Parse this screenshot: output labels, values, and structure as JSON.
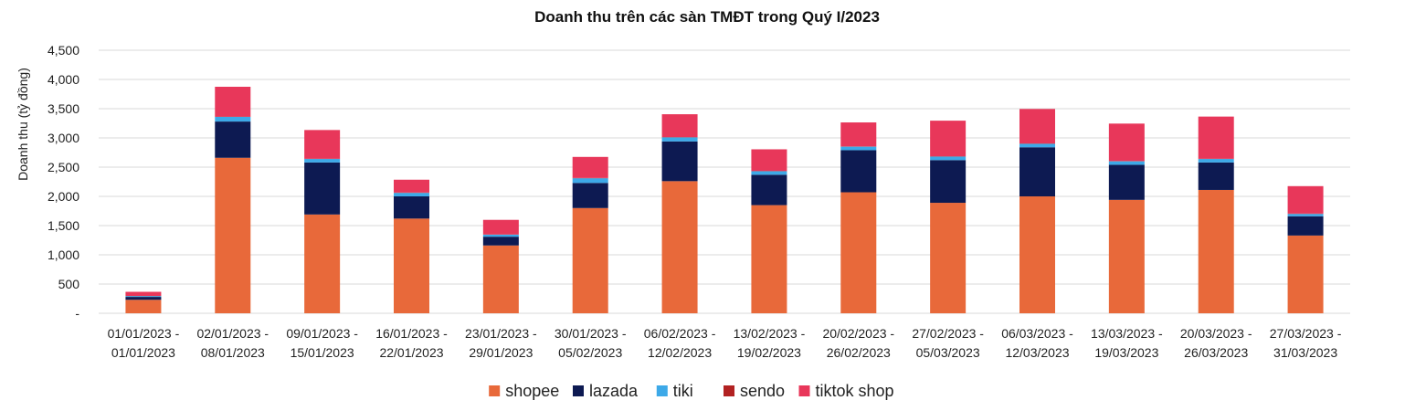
{
  "chart_data": {
    "type": "bar",
    "stacked": true,
    "title": "Doanh thu trên các sàn TMĐT trong Quý I/2023",
    "xlabel": "",
    "ylabel": "Doanh thu (tỷ đồng)",
    "ylim": [
      0,
      4500
    ],
    "yticks": [
      0,
      500,
      1000,
      1500,
      2000,
      2500,
      3000,
      3500,
      4000,
      4500
    ],
    "ytick_labels": [
      "-",
      "500",
      "1,000",
      "1,500",
      "2,000",
      "2,500",
      "3,000",
      "3,500",
      "4,000",
      "4,500"
    ],
    "grid": true,
    "legend_position": "bottom",
    "categories": [
      "01/01/2023 - 01/01/2023",
      "02/01/2023 - 08/01/2023",
      "09/01/2023 - 15/01/2023",
      "16/01/2023 - 22/01/2023",
      "23/01/2023 - 29/01/2023",
      "30/01/2023 - 05/02/2023",
      "06/02/2023 - 12/02/2023",
      "13/02/2023 - 19/02/2023",
      "20/02/2023 - 26/02/2023",
      "27/02/2023 - 05/03/2023",
      "06/03/2023 - 12/03/2023",
      "13/03/2023 - 19/03/2023",
      "20/03/2023 - 26/03/2023",
      "27/03/2023 - 31/03/2023"
    ],
    "series": [
      {
        "name": "shopee",
        "color": "#E8693A",
        "values": [
          230,
          2660,
          1690,
          1620,
          1160,
          1800,
          2260,
          1850,
          2070,
          1890,
          2000,
          1940,
          2110,
          1330
        ]
      },
      {
        "name": "lazada",
        "color": "#0D1A52",
        "values": [
          50,
          620,
          890,
          380,
          150,
          430,
          680,
          520,
          720,
          730,
          840,
          600,
          470,
          330
        ]
      },
      {
        "name": "tiki",
        "color": "#3DA9E8",
        "values": [
          15,
          80,
          60,
          60,
          35,
          80,
          70,
          60,
          60,
          60,
          60,
          60,
          60,
          40
        ]
      },
      {
        "name": "sendo",
        "color": "#B22222",
        "values": [
          2,
          5,
          5,
          5,
          3,
          5,
          5,
          5,
          5,
          5,
          5,
          5,
          5,
          5
        ]
      },
      {
        "name": "tiktok shop",
        "color": "#E8375A",
        "values": [
          70,
          510,
          490,
          220,
          250,
          360,
          390,
          370,
          410,
          610,
          590,
          640,
          720,
          470
        ]
      }
    ]
  }
}
